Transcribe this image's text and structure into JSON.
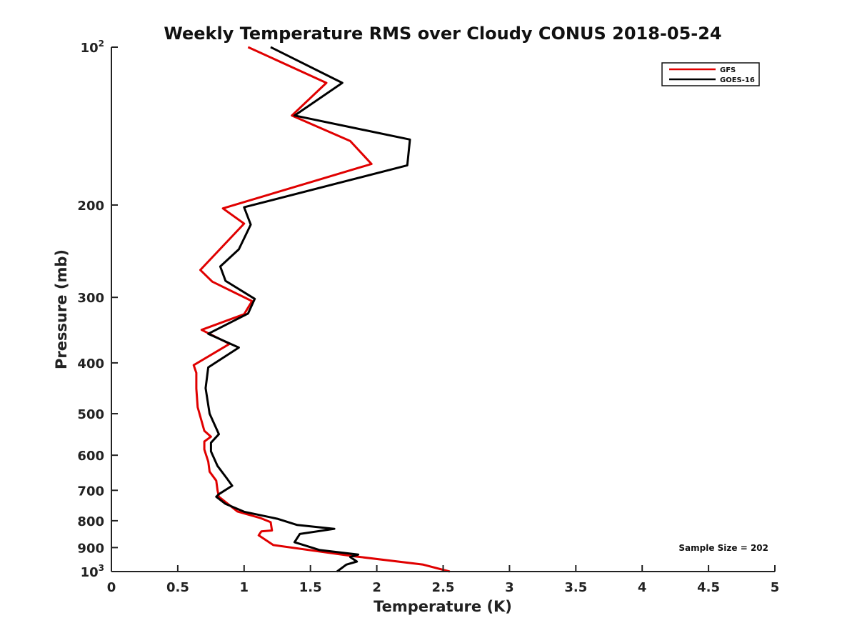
{
  "chart_data": {
    "type": "line",
    "title": "Weekly Temperature RMS over Cloudy CONUS 2018-05-24",
    "xlabel": "Temperature (K)",
    "ylabel": "Pressure (mb)",
    "xlim": [
      0,
      5
    ],
    "ylim": [
      100,
      1000
    ],
    "y_scale": "log",
    "y_reversed": true,
    "grid": false,
    "legend_position": "top-right",
    "x_ticks": [
      0,
      0.5,
      1,
      1.5,
      2,
      2.5,
      3,
      3.5,
      4,
      4.5,
      5
    ],
    "x_tick_labels": [
      "0",
      "0.5",
      "1",
      "1.5",
      "2",
      "2.5",
      "3",
      "3.5",
      "4",
      "4.5",
      "5"
    ],
    "y_ticks": [
      100,
      200,
      300,
      400,
      500,
      600,
      700,
      800,
      900,
      1000
    ],
    "y_tick_labels": [
      {
        "base": "10",
        "sup": "2"
      },
      {
        "base": "200",
        "sup": ""
      },
      {
        "base": "300",
        "sup": ""
      },
      {
        "base": "400",
        "sup": ""
      },
      {
        "base": "500",
        "sup": ""
      },
      {
        "base": "600",
        "sup": ""
      },
      {
        "base": "700",
        "sup": ""
      },
      {
        "base": "800",
        "sup": ""
      },
      {
        "base": "900",
        "sup": ""
      },
      {
        "base": "10",
        "sup": "3"
      }
    ],
    "annotation": "Sample Size = 202",
    "series": [
      {
        "name": "GFS",
        "color": "#e00000",
        "points": [
          [
            1.03,
            100
          ],
          [
            1.62,
            117
          ],
          [
            1.36,
            135
          ],
          [
            1.8,
            151
          ],
          [
            1.96,
            167
          ],
          [
            0.84,
            203
          ],
          [
            1.0,
            217
          ],
          [
            0.67,
            266
          ],
          [
            0.76,
            280
          ],
          [
            1.06,
            305
          ],
          [
            1.0,
            323
          ],
          [
            0.68,
            346
          ],
          [
            0.89,
            368
          ],
          [
            0.62,
            404
          ],
          [
            0.64,
            418
          ],
          [
            0.64,
            448
          ],
          [
            0.65,
            486
          ],
          [
            0.7,
            539
          ],
          [
            0.75,
            553
          ],
          [
            0.7,
            565
          ],
          [
            0.7,
            585
          ],
          [
            0.73,
            617
          ],
          [
            0.74,
            645
          ],
          [
            0.79,
            671
          ],
          [
            0.8,
            700
          ],
          [
            0.81,
            720
          ],
          [
            0.95,
            768
          ],
          [
            1.12,
            790
          ],
          [
            1.2,
            805
          ],
          [
            1.21,
            835
          ],
          [
            1.13,
            838
          ],
          [
            1.11,
            853
          ],
          [
            1.22,
            890
          ],
          [
            1.83,
            935
          ],
          [
            2.35,
            970
          ],
          [
            2.55,
            1000
          ]
        ]
      },
      {
        "name": "GOES-16",
        "color": "#000000",
        "points": [
          [
            1.2,
            100
          ],
          [
            1.74,
            117
          ],
          [
            1.38,
            135
          ],
          [
            2.25,
            150
          ],
          [
            2.23,
            168
          ],
          [
            1.0,
            202
          ],
          [
            1.05,
            218
          ],
          [
            0.96,
            243
          ],
          [
            0.82,
            262
          ],
          [
            0.86,
            279
          ],
          [
            1.08,
            302
          ],
          [
            1.03,
            322
          ],
          [
            0.73,
            352
          ],
          [
            0.96,
            374
          ],
          [
            0.73,
            408
          ],
          [
            0.71,
            447
          ],
          [
            0.74,
            500
          ],
          [
            0.81,
            547
          ],
          [
            0.75,
            568
          ],
          [
            0.75,
            590
          ],
          [
            0.8,
            629
          ],
          [
            0.87,
            664
          ],
          [
            0.91,
            686
          ],
          [
            0.81,
            712
          ],
          [
            0.79,
            720
          ],
          [
            0.86,
            743
          ],
          [
            1.0,
            769
          ],
          [
            1.25,
            793
          ],
          [
            1.4,
            815
          ],
          [
            1.68,
            829
          ],
          [
            1.42,
            848
          ],
          [
            1.38,
            879
          ],
          [
            1.57,
            910
          ],
          [
            1.86,
            928
          ],
          [
            1.8,
            938
          ],
          [
            1.85,
            957
          ],
          [
            1.77,
            970
          ],
          [
            1.7,
            1000
          ]
        ]
      }
    ]
  }
}
